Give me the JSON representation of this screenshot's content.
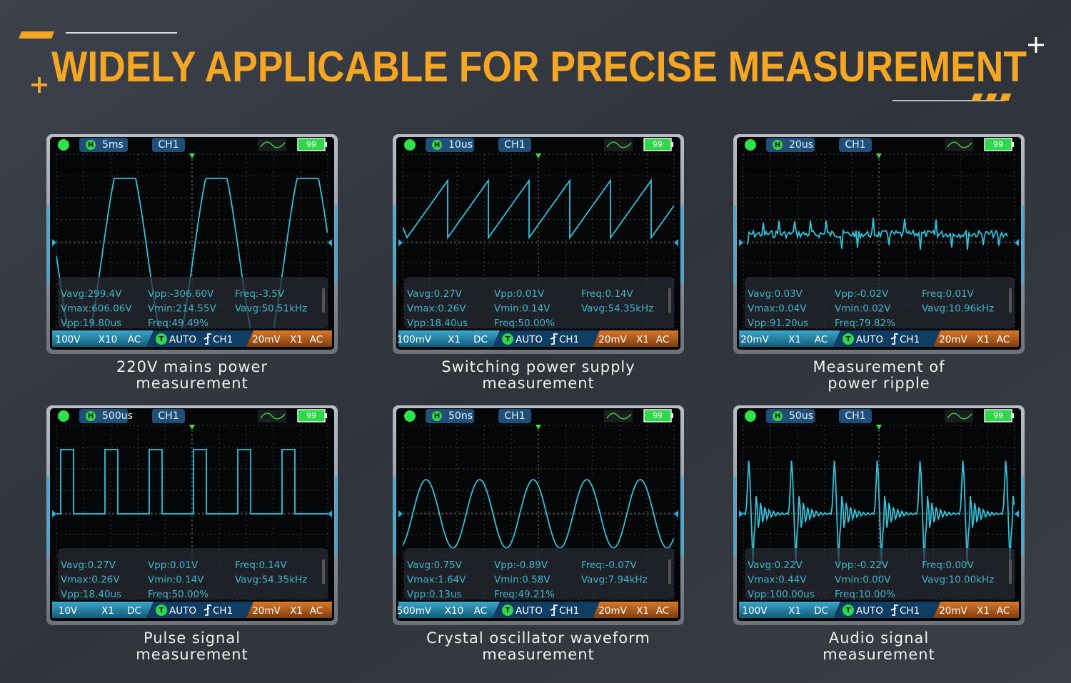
{
  "title": "WIDELY APPLICABLE FOR PRECISE MEASUREMENT",
  "panels": [
    {
      "timebase": "5ms",
      "hold": "H",
      "channel": "CH1",
      "battery": "99",
      "measurements": [
        "Vavg:299.4V",
        "Vpp:-306.60V",
        "Freq:-3.5V",
        "Vmax:606.06V",
        "Vmin:214.55V",
        "Vavg:50.51kHz",
        "Vpp:19.80us",
        "Freq:49.49%"
      ],
      "coupling_left": [
        "100V",
        "X10",
        "AC"
      ],
      "trigger": "T",
      "trigger_mode": "AUTO",
      "trigger_source": "CH1",
      "coupling_right": [
        "20mV",
        "X1",
        "AC"
      ],
      "caption": [
        "220V mains power",
        "measurement"
      ]
    },
    {
      "timebase": "10us",
      "hold": "H",
      "channel": "CH1",
      "battery": "99",
      "measurements": [
        "Vavg:0.27V",
        "Vpp:0.01V",
        "Freq:0.14V",
        "Vmax:0.26V",
        "Vmin:0.14V",
        "Vavg:54.35kHz",
        "Vpp:18.40us",
        "Freq:50.00%"
      ],
      "coupling_left": [
        "100mV",
        "X1",
        "DC"
      ],
      "trigger": "T",
      "trigger_mode": "AUTO",
      "trigger_source": "CH1",
      "coupling_right": [
        "20mV",
        "X1",
        "AC"
      ],
      "caption": [
        "Switching power supply",
        "measurement"
      ]
    },
    {
      "timebase": "20us",
      "hold": "H",
      "channel": "CH1",
      "battery": "99",
      "measurements": [
        "Vavg:0.03V",
        "Vpp:-0.02V",
        "Freq:0.01V",
        "Vmax:0.04V",
        "Vmin:0.02V",
        "Vavg:10.96kHz",
        "Vpp:91.20us",
        "Freq:79.82%"
      ],
      "coupling_left": [
        "20mV",
        "X1",
        "AC"
      ],
      "trigger": "T",
      "trigger_mode": "AUTO",
      "trigger_source": "CH1",
      "coupling_right": [
        "20mV",
        "X1",
        "AC"
      ],
      "caption": [
        "Measurement of",
        "power ripple"
      ]
    },
    {
      "timebase": "500us",
      "hold": "H",
      "channel": "CH1",
      "battery": "99",
      "measurements": [
        "Vavg:0.27V",
        "Vpp:0.01V",
        "Freq:0.14V",
        "Vmax:0.26V",
        "Vmin:0.14V",
        "Vavg:54.35kHz",
        "Vpp:18.40us",
        "Freq:50.00%"
      ],
      "coupling_left": [
        "10V",
        "X1",
        "DC"
      ],
      "trigger": "T",
      "trigger_mode": "AUTO",
      "trigger_source": "CH1",
      "coupling_right": [
        "20mV",
        "X1",
        "AC"
      ],
      "caption": [
        "Pulse signal",
        "measurement"
      ]
    },
    {
      "timebase": "50ns",
      "hold": "H",
      "channel": "CH1",
      "battery": "99",
      "measurements": [
        "Vavg:0.75V",
        "Vpp:-0.89V",
        "Freq:-0.07V",
        "Vmax:1.64V",
        "Vmin:0.58V",
        "Vavg:7.94kHz",
        "Vpp:0.13us",
        "Freq:49.21%"
      ],
      "coupling_left": [
        "500mV",
        "X10",
        "AC"
      ],
      "trigger": "T",
      "trigger_mode": "AUTO",
      "trigger_source": "CH1",
      "coupling_right": [
        "20mV",
        "X1",
        "AC"
      ],
      "caption": [
        "Crystal oscillator waveform",
        "measurement"
      ]
    },
    {
      "timebase": "50us",
      "hold": "H",
      "channel": "CH1",
      "battery": "99",
      "measurements": [
        "Vavg:0.22V",
        "Vpp:-0.22V",
        "Freq:0.00V",
        "Vmax:0.44V",
        "Vmin:0.00V",
        "Vavg:10.00kHz",
        "Vpp:100.00us",
        "Freq:10.00%"
      ],
      "coupling_left": [
        "100V",
        "X1",
        "DC"
      ],
      "trigger": "T",
      "trigger_mode": "AUTO",
      "trigger_source": "CH1",
      "coupling_right": [
        "20mV",
        "X1",
        "AC"
      ],
      "caption": [
        "Audio signal",
        "measurement"
      ]
    }
  ]
}
